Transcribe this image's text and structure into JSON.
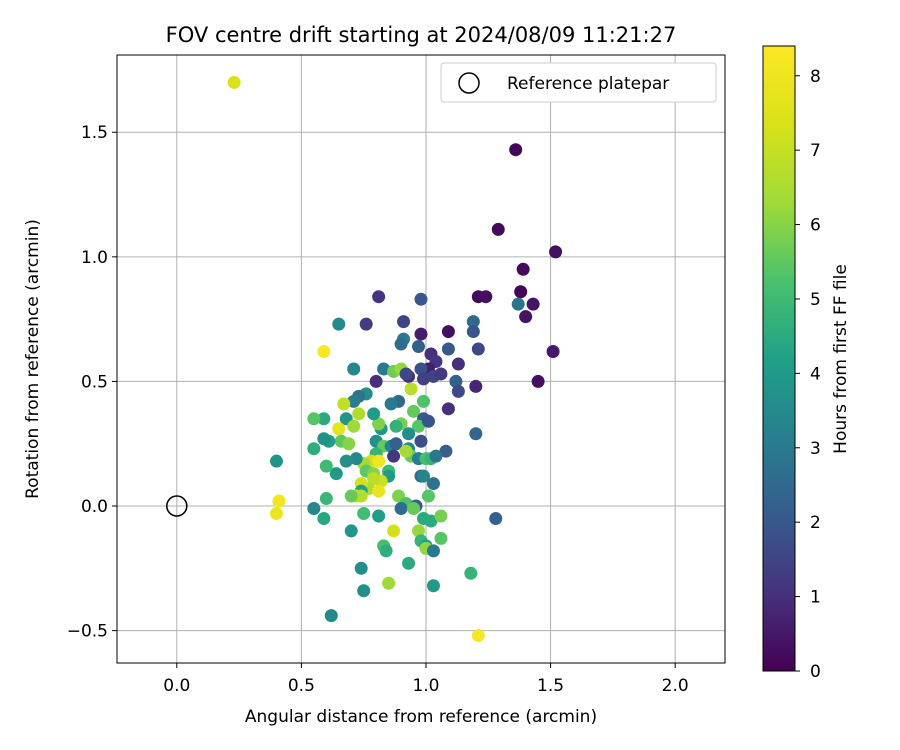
{
  "chart_data": {
    "type": "scatter",
    "title": "FOV centre drift starting at 2024/08/09 11:21:27",
    "xlabel": "Angular distance from reference (arcmin)",
    "ylabel": "Rotation from reference (arcmin)",
    "xlim": [
      -0.24,
      2.2
    ],
    "ylim": [
      -0.63,
      1.81
    ],
    "x_ticks": [
      0.0,
      0.5,
      1.0,
      1.5,
      2.0
    ],
    "x_tick_labels": [
      "0.0",
      "0.5",
      "1.0",
      "1.5",
      "2.0"
    ],
    "y_ticks": [
      -0.5,
      0.0,
      0.5,
      1.0,
      1.5
    ],
    "y_tick_labels": [
      "−0.5",
      "0.0",
      "0.5",
      "1.0",
      "1.5"
    ],
    "grid": true,
    "legend": {
      "placement": "top-right",
      "entries": [
        "Reference platepar"
      ]
    },
    "reference_point": {
      "x": 0.0,
      "y": 0.0
    },
    "colorbar": {
      "label": "Hours from first FF file",
      "range": [
        0,
        8.4
      ],
      "ticks": [
        0,
        1,
        2,
        3,
        4,
        5,
        6,
        7,
        8
      ],
      "tick_labels": [
        "0",
        "1",
        "2",
        "3",
        "4",
        "5",
        "6",
        "7",
        "8"
      ],
      "colormap": "viridis"
    },
    "points": [
      [
        1.36,
        1.43,
        0.1
      ],
      [
        1.29,
        1.11,
        0.2
      ],
      [
        1.52,
        1.02,
        0.3
      ],
      [
        1.39,
        0.95,
        0.2
      ],
      [
        1.38,
        0.86,
        0.1
      ],
      [
        1.21,
        0.84,
        0.2
      ],
      [
        1.24,
        0.84,
        0.3
      ],
      [
        1.43,
        0.81,
        0.4
      ],
      [
        1.37,
        0.81,
        2.8
      ],
      [
        1.4,
        0.76,
        0.4
      ],
      [
        1.51,
        0.62,
        0.5
      ],
      [
        1.45,
        0.5,
        0.3
      ],
      [
        1.19,
        0.74,
        2.5
      ],
      [
        1.19,
        0.7,
        1.9
      ],
      [
        1.09,
        0.7,
        0.3
      ],
      [
        0.98,
        0.69,
        0.6
      ],
      [
        1.21,
        0.63,
        1.6
      ],
      [
        1.09,
        0.63,
        2.0
      ],
      [
        1.02,
        0.61,
        1.0
      ],
      [
        1.04,
        0.58,
        1.1
      ],
      [
        1.01,
        0.55,
        0.6
      ],
      [
        1.13,
        0.57,
        1.0
      ],
      [
        1.03,
        0.52,
        1.5
      ],
      [
        1.06,
        0.53,
        1.2
      ],
      [
        1.2,
        0.48,
        0.8
      ],
      [
        1.12,
        0.5,
        2.2
      ],
      [
        1.13,
        0.46,
        1.6
      ],
      [
        1.09,
        0.39,
        1.0
      ],
      [
        1.2,
        0.29,
        2.4
      ],
      [
        1.08,
        0.22,
        2.2
      ],
      [
        1.28,
        -0.05,
        2.3
      ],
      [
        0.98,
        0.83,
        2.0
      ],
      [
        0.81,
        0.84,
        1.1
      ],
      [
        0.76,
        0.73,
        1.3
      ],
      [
        0.65,
        0.73,
        3.5
      ],
      [
        0.91,
        0.74,
        1.5
      ],
      [
        0.91,
        0.67,
        3.0
      ],
      [
        0.9,
        0.65,
        2.6
      ],
      [
        0.97,
        0.64,
        2.2
      ],
      [
        0.98,
        0.55,
        1.8
      ],
      [
        0.99,
        0.51,
        1.4
      ],
      [
        0.93,
        0.52,
        1.0
      ],
      [
        0.83,
        0.55,
        3.0
      ],
      [
        0.87,
        0.54,
        5.7
      ],
      [
        0.9,
        0.55,
        6.2
      ],
      [
        0.92,
        0.53,
        1.6
      ],
      [
        0.8,
        0.5,
        1.0
      ],
      [
        0.71,
        0.55,
        3.4
      ],
      [
        0.94,
        0.47,
        6.8
      ],
      [
        0.89,
        0.42,
        2.5
      ],
      [
        0.86,
        0.41,
        3.0
      ],
      [
        0.95,
        0.38,
        5.6
      ],
      [
        0.99,
        0.42,
        5.3
      ],
      [
        0.99,
        0.35,
        2.1
      ],
      [
        0.97,
        0.32,
        5.4
      ],
      [
        1.01,
        0.34,
        1.9
      ],
      [
        0.9,
        0.33,
        5.8
      ],
      [
        0.88,
        0.32,
        4.7
      ],
      [
        0.93,
        0.29,
        3.6
      ],
      [
        0.82,
        0.31,
        3.9
      ],
      [
        0.81,
        0.33,
        5.9
      ],
      [
        0.76,
        0.45,
        3.6
      ],
      [
        0.73,
        0.44,
        2.8
      ],
      [
        0.71,
        0.42,
        3.1
      ],
      [
        0.67,
        0.41,
        6.9
      ],
      [
        0.73,
        0.37,
        6.6
      ],
      [
        0.79,
        0.37,
        4.0
      ],
      [
        0.68,
        0.35,
        3.8
      ],
      [
        0.59,
        0.35,
        4.5
      ],
      [
        0.55,
        0.35,
        5.4
      ],
      [
        0.71,
        0.32,
        6.3
      ],
      [
        0.8,
        0.26,
        3.6
      ],
      [
        0.83,
        0.24,
        5.6
      ],
      [
        0.86,
        0.24,
        3.3
      ],
      [
        0.88,
        0.25,
        2.3
      ],
      [
        0.93,
        0.23,
        3.4
      ],
      [
        0.98,
        0.26,
        1.8
      ],
      [
        0.94,
        0.2,
        5.6
      ],
      [
        0.97,
        0.19,
        3.1
      ],
      [
        1.0,
        0.19,
        5.2
      ],
      [
        0.87,
        0.2,
        1.2
      ],
      [
        0.92,
        0.22,
        6.4
      ],
      [
        0.8,
        0.21,
        4.8
      ],
      [
        0.78,
        0.18,
        7.2
      ],
      [
        0.81,
        0.18,
        8.0
      ],
      [
        0.75,
        0.17,
        6.4
      ],
      [
        0.72,
        0.19,
        3.5
      ],
      [
        0.68,
        0.18,
        3.7
      ],
      [
        0.76,
        0.14,
        5.5
      ],
      [
        0.79,
        0.13,
        6.0
      ],
      [
        0.85,
        0.14,
        5.0
      ],
      [
        0.85,
        0.12,
        4.0
      ],
      [
        0.82,
        0.1,
        7.1
      ],
      [
        0.79,
        0.11,
        6.8
      ],
      [
        0.77,
        0.07,
        6.6
      ],
      [
        0.74,
        0.09,
        7.3
      ],
      [
        0.74,
        0.06,
        4.2
      ],
      [
        0.72,
        0.04,
        7.0
      ],
      [
        0.74,
        0.04,
        6.7
      ],
      [
        0.7,
        0.04,
        5.6
      ],
      [
        0.81,
        0.06,
        7.8
      ],
      [
        0.65,
        0.31,
        7.7
      ],
      [
        0.66,
        0.26,
        5.5
      ],
      [
        0.69,
        0.25,
        6.0
      ],
      [
        0.64,
        0.13,
        4.0
      ],
      [
        0.61,
        0.26,
        4.1
      ],
      [
        0.59,
        0.27,
        3.7
      ],
      [
        0.55,
        0.23,
        4.6
      ],
      [
        0.6,
        0.16,
        5.0
      ],
      [
        0.6,
        0.03,
        4.9
      ],
      [
        0.55,
        -0.01,
        3.4
      ],
      [
        0.59,
        -0.05,
        4.4
      ],
      [
        0.7,
        -0.1,
        3.9
      ],
      [
        0.75,
        -0.03,
        5.1
      ],
      [
        0.81,
        -0.04,
        4.1
      ],
      [
        0.89,
        0.04,
        5.9
      ],
      [
        0.92,
        0.01,
        5.3
      ],
      [
        0.9,
        -0.01,
        2.6
      ],
      [
        0.96,
        0.0,
        2.3
      ],
      [
        0.95,
        -0.01,
        5.6
      ],
      [
        1.01,
        0.04,
        5.4
      ],
      [
        1.03,
        0.09,
        2.8
      ],
      [
        0.98,
        0.12,
        2.6
      ],
      [
        0.99,
        0.12,
        3.3
      ],
      [
        1.02,
        0.19,
        4.8
      ],
      [
        1.04,
        0.2,
        2.9
      ],
      [
        0.99,
        -0.05,
        4.5
      ],
      [
        1.02,
        -0.06,
        4.5
      ],
      [
        1.06,
        -0.04,
        5.8
      ],
      [
        0.97,
        -0.1,
        6.2
      ],
      [
        0.98,
        -0.14,
        4.8
      ],
      [
        1.0,
        -0.16,
        4.2
      ],
      [
        1.0,
        -0.17,
        6.1
      ],
      [
        1.03,
        -0.18,
        3.0
      ],
      [
        1.06,
        -0.13,
        5.4
      ],
      [
        0.87,
        -0.1,
        7.3
      ],
      [
        0.83,
        -0.16,
        5.2
      ],
      [
        0.84,
        -0.18,
        4.6
      ],
      [
        0.93,
        -0.23,
        4.5
      ],
      [
        0.74,
        -0.25,
        3.6
      ],
      [
        0.85,
        -0.31,
        6.3
      ],
      [
        0.75,
        -0.34,
        3.6
      ],
      [
        1.03,
        -0.32,
        4.0
      ],
      [
        1.18,
        -0.27,
        4.8
      ],
      [
        0.62,
        -0.44,
        3.5
      ],
      [
        0.4,
        0.18,
        3.8
      ],
      [
        0.4,
        -0.03,
        7.9
      ],
      [
        0.41,
        0.02,
        8.1
      ],
      [
        0.59,
        0.62,
        8.3
      ],
      [
        0.23,
        1.7,
        7.4
      ],
      [
        1.21,
        -0.52,
        8.2
      ]
    ]
  }
}
